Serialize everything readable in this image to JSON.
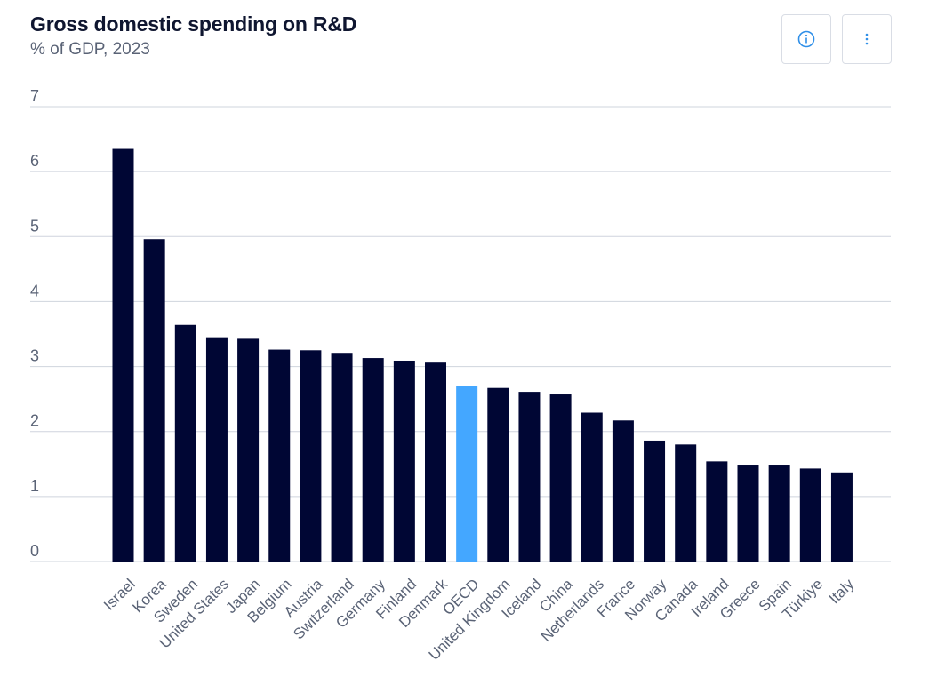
{
  "header": {
    "title": "Gross domestic spending on R&D",
    "subtitle": "% of GDP, 2023"
  },
  "toolbar": {
    "info_icon": "info-circle-icon",
    "menu_icon": "vertical-ellipsis-icon"
  },
  "colors": {
    "bar": "#000634",
    "highlight": "#44a7ff",
    "grid": "#cfd4dd",
    "text": "#5a6376",
    "title": "#0f1630",
    "icon": "#2f8fe8"
  },
  "chart_data": {
    "type": "bar",
    "title": "Gross domestic spending on R&D",
    "subtitle": "% of GDP, 2023",
    "xlabel": "",
    "ylabel": "",
    "ylim": [
      0,
      7
    ],
    "yticks": [
      0,
      1,
      2,
      3,
      4,
      5,
      6,
      7
    ],
    "grid": true,
    "highlight": "OECD",
    "categories": [
      "Israel",
      "Korea",
      "Sweden",
      "United States",
      "Japan",
      "Belgium",
      "Austria",
      "Switzerland",
      "Germany",
      "Finland",
      "Denmark",
      "OECD",
      "United Kingdom",
      "Iceland",
      "China",
      "Netherlands",
      "France",
      "Norway",
      "Canada",
      "Ireland",
      "Greece",
      "Spain",
      "Türkiye",
      "Italy"
    ],
    "values": [
      6.35,
      4.96,
      3.64,
      3.45,
      3.44,
      3.26,
      3.25,
      3.21,
      3.13,
      3.09,
      3.06,
      2.7,
      2.67,
      2.61,
      2.57,
      2.29,
      2.17,
      1.86,
      1.8,
      1.54,
      1.49,
      1.49,
      1.43,
      1.37
    ]
  }
}
